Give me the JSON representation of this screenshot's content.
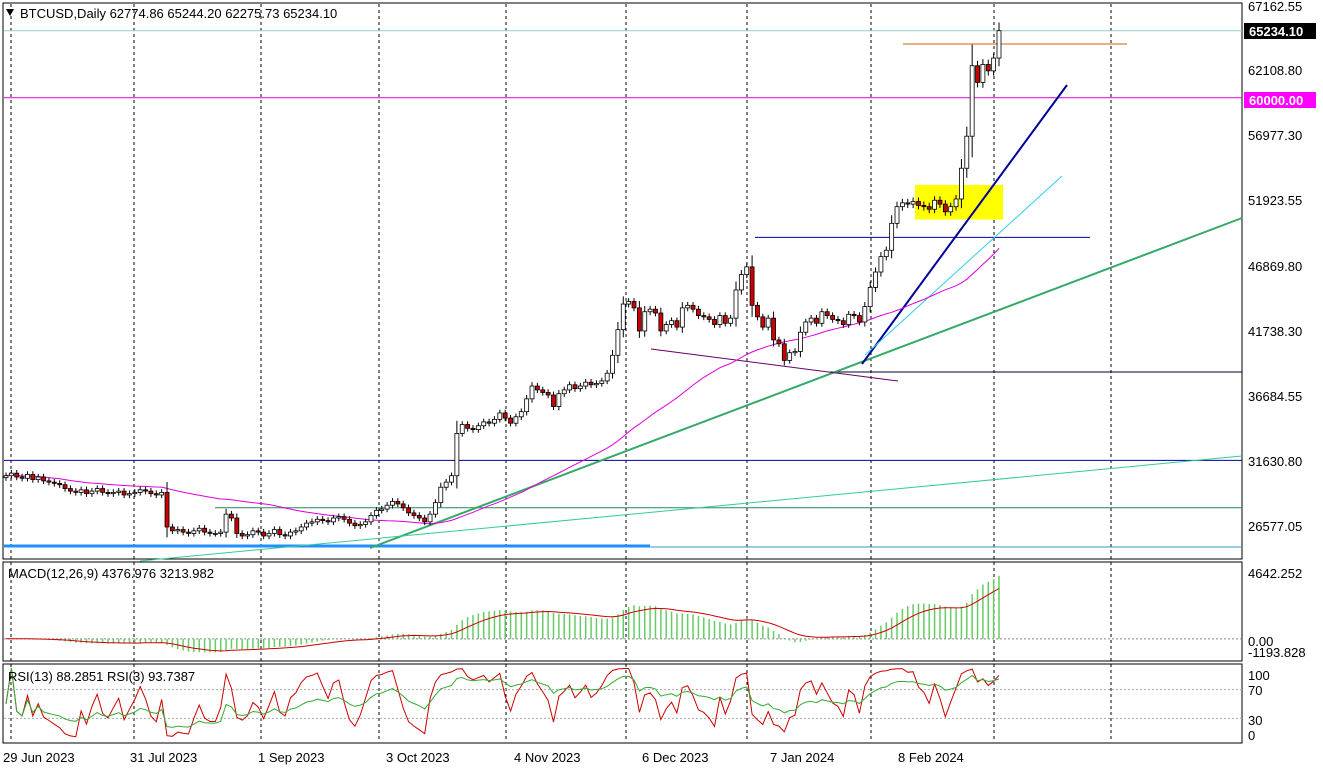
{
  "header": {
    "symbol_line": "BTCUSD,Daily  62774.86 65244.20 62275.73 65234.10"
  },
  "colors": {
    "bull": "#22aa22",
    "bear": "#cc0000",
    "ma": "#dd00dd",
    "macd_hist": "#66cc66",
    "macd_signal": "#cc0000",
    "rsi13": "#33aa33",
    "rsi3": "#cc0000",
    "level_60k": "#dd00dd",
    "trend_main": "#33aa66",
    "trend_steep": "#000099",
    "trend_cyan": "#33ccee",
    "horizontal_blue": "#000099",
    "support_blue": "#1e90ff",
    "highlight": "#ffff00",
    "orange_line": "#cc6600"
  },
  "price_axis": {
    "labels": [
      "67162.55",
      "62108.80",
      "56977.30",
      "51923.55",
      "46869.80",
      "41738.30",
      "36684.55",
      "31630.80",
      "26577.05"
    ],
    "current_price_tag": "65234.10",
    "level_tag": "60000.00"
  },
  "macd": {
    "label": "MACD(12,26,9) 4376.976 3213.982",
    "axis_labels": [
      "4642.252",
      "0.00",
      "-1193.828"
    ]
  },
  "rsi": {
    "label": "RSI(13) 88.2851  RSI(3) 93.7387",
    "axis_labels": [
      "100",
      "70",
      "30",
      "0"
    ]
  },
  "time_axis": {
    "labels": [
      "29 Jun 2023",
      "31 Jul 2023",
      "1 Sep 2023",
      "3 Oct 2023",
      "4 Nov 2023",
      "6 Dec 2023",
      "7 Jan 2024",
      "8 Feb 2024"
    ]
  },
  "chart_data": {
    "type": "candlestick",
    "symbol": "BTCUSD",
    "timeframe": "Daily",
    "last_bar": {
      "open": 62774.86,
      "high": 65244.2,
      "low": 62275.73,
      "close": 65234.1
    },
    "y_range": [
      24000,
      68000
    ],
    "series": [
      {
        "name": "price_path",
        "values": [
          30500,
          30700,
          30400,
          30300,
          30600,
          30200,
          30400,
          30100,
          30000,
          29900,
          29800,
          29500,
          29300,
          29200,
          29400,
          29100,
          29300,
          29500,
          29200,
          29100,
          29200,
          29300,
          29000,
          29100,
          29200,
          29400,
          29300,
          29100,
          29000,
          29200,
          26500,
          26200,
          26300,
          26100,
          26000,
          26200,
          26400,
          26100,
          26000,
          26000,
          26100,
          27500,
          27200,
          26000,
          25800,
          25900,
          26200,
          26100,
          25800,
          26000,
          26300,
          25900,
          25800,
          26100,
          26200,
          26500,
          26800,
          26900,
          27100,
          27000,
          26900,
          27200,
          27300,
          27100,
          26800,
          26600,
          26700,
          26900,
          27400,
          27800,
          27900,
          28200,
          28500,
          28300,
          28000,
          27600,
          27400,
          27200,
          26900,
          27500,
          28400,
          29600,
          30000,
          30500,
          33800,
          34500,
          34200,
          34100,
          34400,
          34700,
          34600,
          34900,
          35400,
          35000,
          34600,
          35100,
          35500,
          36500,
          37500,
          37200,
          37000,
          36800,
          35900,
          36900,
          37200,
          37600,
          37300,
          37500,
          37800,
          37600,
          37700,
          37900,
          38500,
          39900,
          41900,
          43900,
          44100,
          43600,
          41800,
          43300,
          43500,
          43200,
          41800,
          42300,
          42600,
          42100,
          43600,
          43800,
          43500,
          43000,
          42900,
          42700,
          42300,
          43000,
          42400,
          42800,
          45000,
          46200,
          46800,
          43800,
          42900,
          42100,
          42800,
          41100,
          40800,
          39500,
          40100,
          40200,
          41700,
          42500,
          42800,
          42400,
          43300,
          43000,
          42700,
          42600,
          42300,
          43100,
          43000,
          42500,
          43700,
          45200,
          46400,
          47600,
          48100,
          50200,
          51500,
          51800,
          51700,
          51900,
          51600,
          51500,
          51300,
          52000,
          51700,
          51100,
          51500,
          52100,
          54500,
          57000,
          62500,
          61200,
          62600,
          62100,
          63100,
          65234
        ]
      },
      {
        "name": "ma",
        "values": []
      }
    ],
    "annotations": {
      "horizontal_levels": [
        60000,
        65234.1,
        62900,
        49100,
        38100,
        31700,
        28000,
        25400
      ],
      "highlight_box": [
        50500,
        53200
      ]
    },
    "macd": {
      "fast": 12,
      "slow": 26,
      "signal": 9,
      "main": 4376.976,
      "signal_value": 3213.982,
      "range": [
        -1193.828,
        4642.252
      ]
    },
    "rsi": {
      "rsi13": 88.2851,
      "rsi3": 93.7387,
      "levels": [
        30,
        70
      ],
      "range": [
        0,
        100
      ]
    }
  }
}
